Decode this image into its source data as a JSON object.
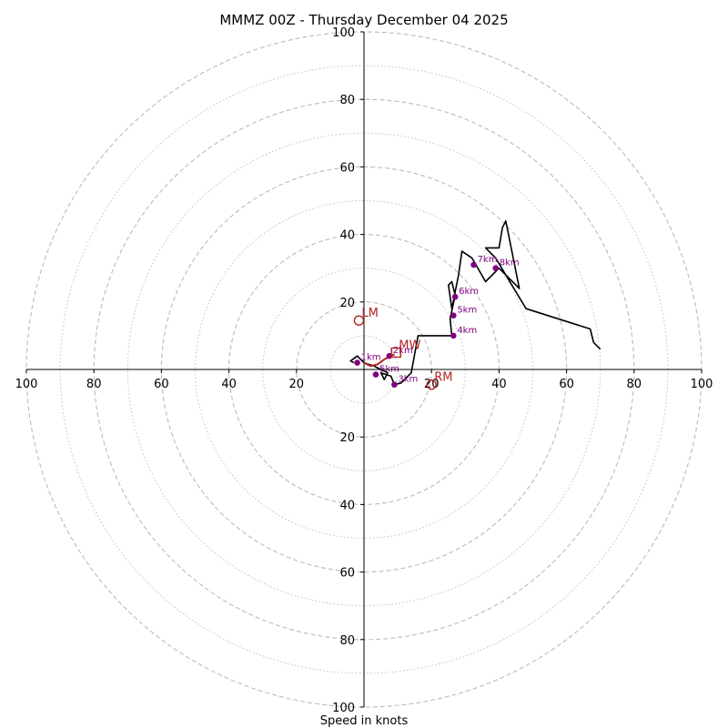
{
  "chart_data": {
    "type": "hodograph",
    "title": "MMMZ 00Z - Thursday December 04 2025",
    "xlabel": "Speed in knots",
    "units": "knots",
    "range": [
      -100,
      100
    ],
    "ring_major_step": 20,
    "ring_minor_step": 10,
    "tick_labels_x": [
      "100",
      "80",
      "60",
      "40",
      "20",
      "20",
      "40",
      "60",
      "80",
      "100"
    ],
    "tick_labels_y": [
      "100",
      "80",
      "60",
      "40",
      "20",
      "20",
      "40",
      "60",
      "80",
      "100"
    ],
    "tick_values": [
      -100,
      -80,
      -60,
      -40,
      -20,
      20,
      40,
      60,
      80,
      100
    ],
    "grid": true,
    "colors": {
      "trace": "#000000",
      "lowlevel_trace": "#b22222",
      "height_points": "#800080",
      "motion": "#b22222",
      "grid": "#bbbbbb"
    },
    "wind_trace": [
      [
        -3,
        2
      ],
      [
        -4,
        2.5
      ],
      [
        -2,
        4
      ],
      [
        0,
        2
      ],
      [
        3,
        1
      ],
      [
        5,
        0
      ],
      [
        7,
        -1
      ],
      [
        6,
        -3
      ],
      [
        5,
        -1
      ],
      [
        8,
        -2
      ],
      [
        9,
        -4.5
      ],
      [
        11,
        -4
      ],
      [
        14,
        -1
      ],
      [
        16,
        10
      ],
      [
        26,
        10
      ],
      [
        25.5,
        15
      ],
      [
        27,
        22
      ],
      [
        26,
        26
      ],
      [
        25,
        25
      ],
      [
        26,
        18
      ],
      [
        28,
        28
      ],
      [
        29,
        35
      ],
      [
        32,
        33
      ],
      [
        36,
        26
      ],
      [
        40,
        30
      ],
      [
        46,
        24
      ],
      [
        42,
        44
      ],
      [
        41,
        42
      ],
      [
        40,
        36
      ],
      [
        36,
        36
      ],
      [
        39,
        33
      ],
      [
        48,
        18
      ],
      [
        67,
        12
      ],
      [
        68,
        8
      ],
      [
        70,
        6
      ]
    ],
    "lowlevel_trace": [
      [
        0,
        2
      ],
      [
        2,
        1
      ],
      [
        4,
        1.5
      ],
      [
        6,
        3
      ],
      [
        8,
        4
      ],
      [
        9,
        4.5
      ]
    ],
    "height_points": [
      {
        "label": "1km",
        "u": -2,
        "v": 2
      },
      {
        "label": "2km",
        "u": 7.5,
        "v": 4
      },
      {
        "label": "3km",
        "u": 9,
        "v": -4.5
      },
      {
        "label": "4km",
        "u": 26.5,
        "v": 10
      },
      {
        "label": "5km",
        "u": 26.5,
        "v": 16
      },
      {
        "label": "6km",
        "u": 27,
        "v": 21.5
      },
      {
        "label": "7km",
        "u": 32.5,
        "v": 31
      },
      {
        "label": "8km",
        "u": 39,
        "v": 30
      },
      {
        "label": "5km",
        "u": 3.5,
        "v": -1.5
      }
    ],
    "motions": [
      {
        "label": "LM",
        "u": -1.5,
        "v": 14.5,
        "marker": "circle"
      },
      {
        "label": "MW",
        "u": 9.5,
        "v": 5,
        "marker": "square"
      },
      {
        "label": "RM",
        "u": 20,
        "v": -4.5,
        "marker": "circle"
      }
    ]
  }
}
